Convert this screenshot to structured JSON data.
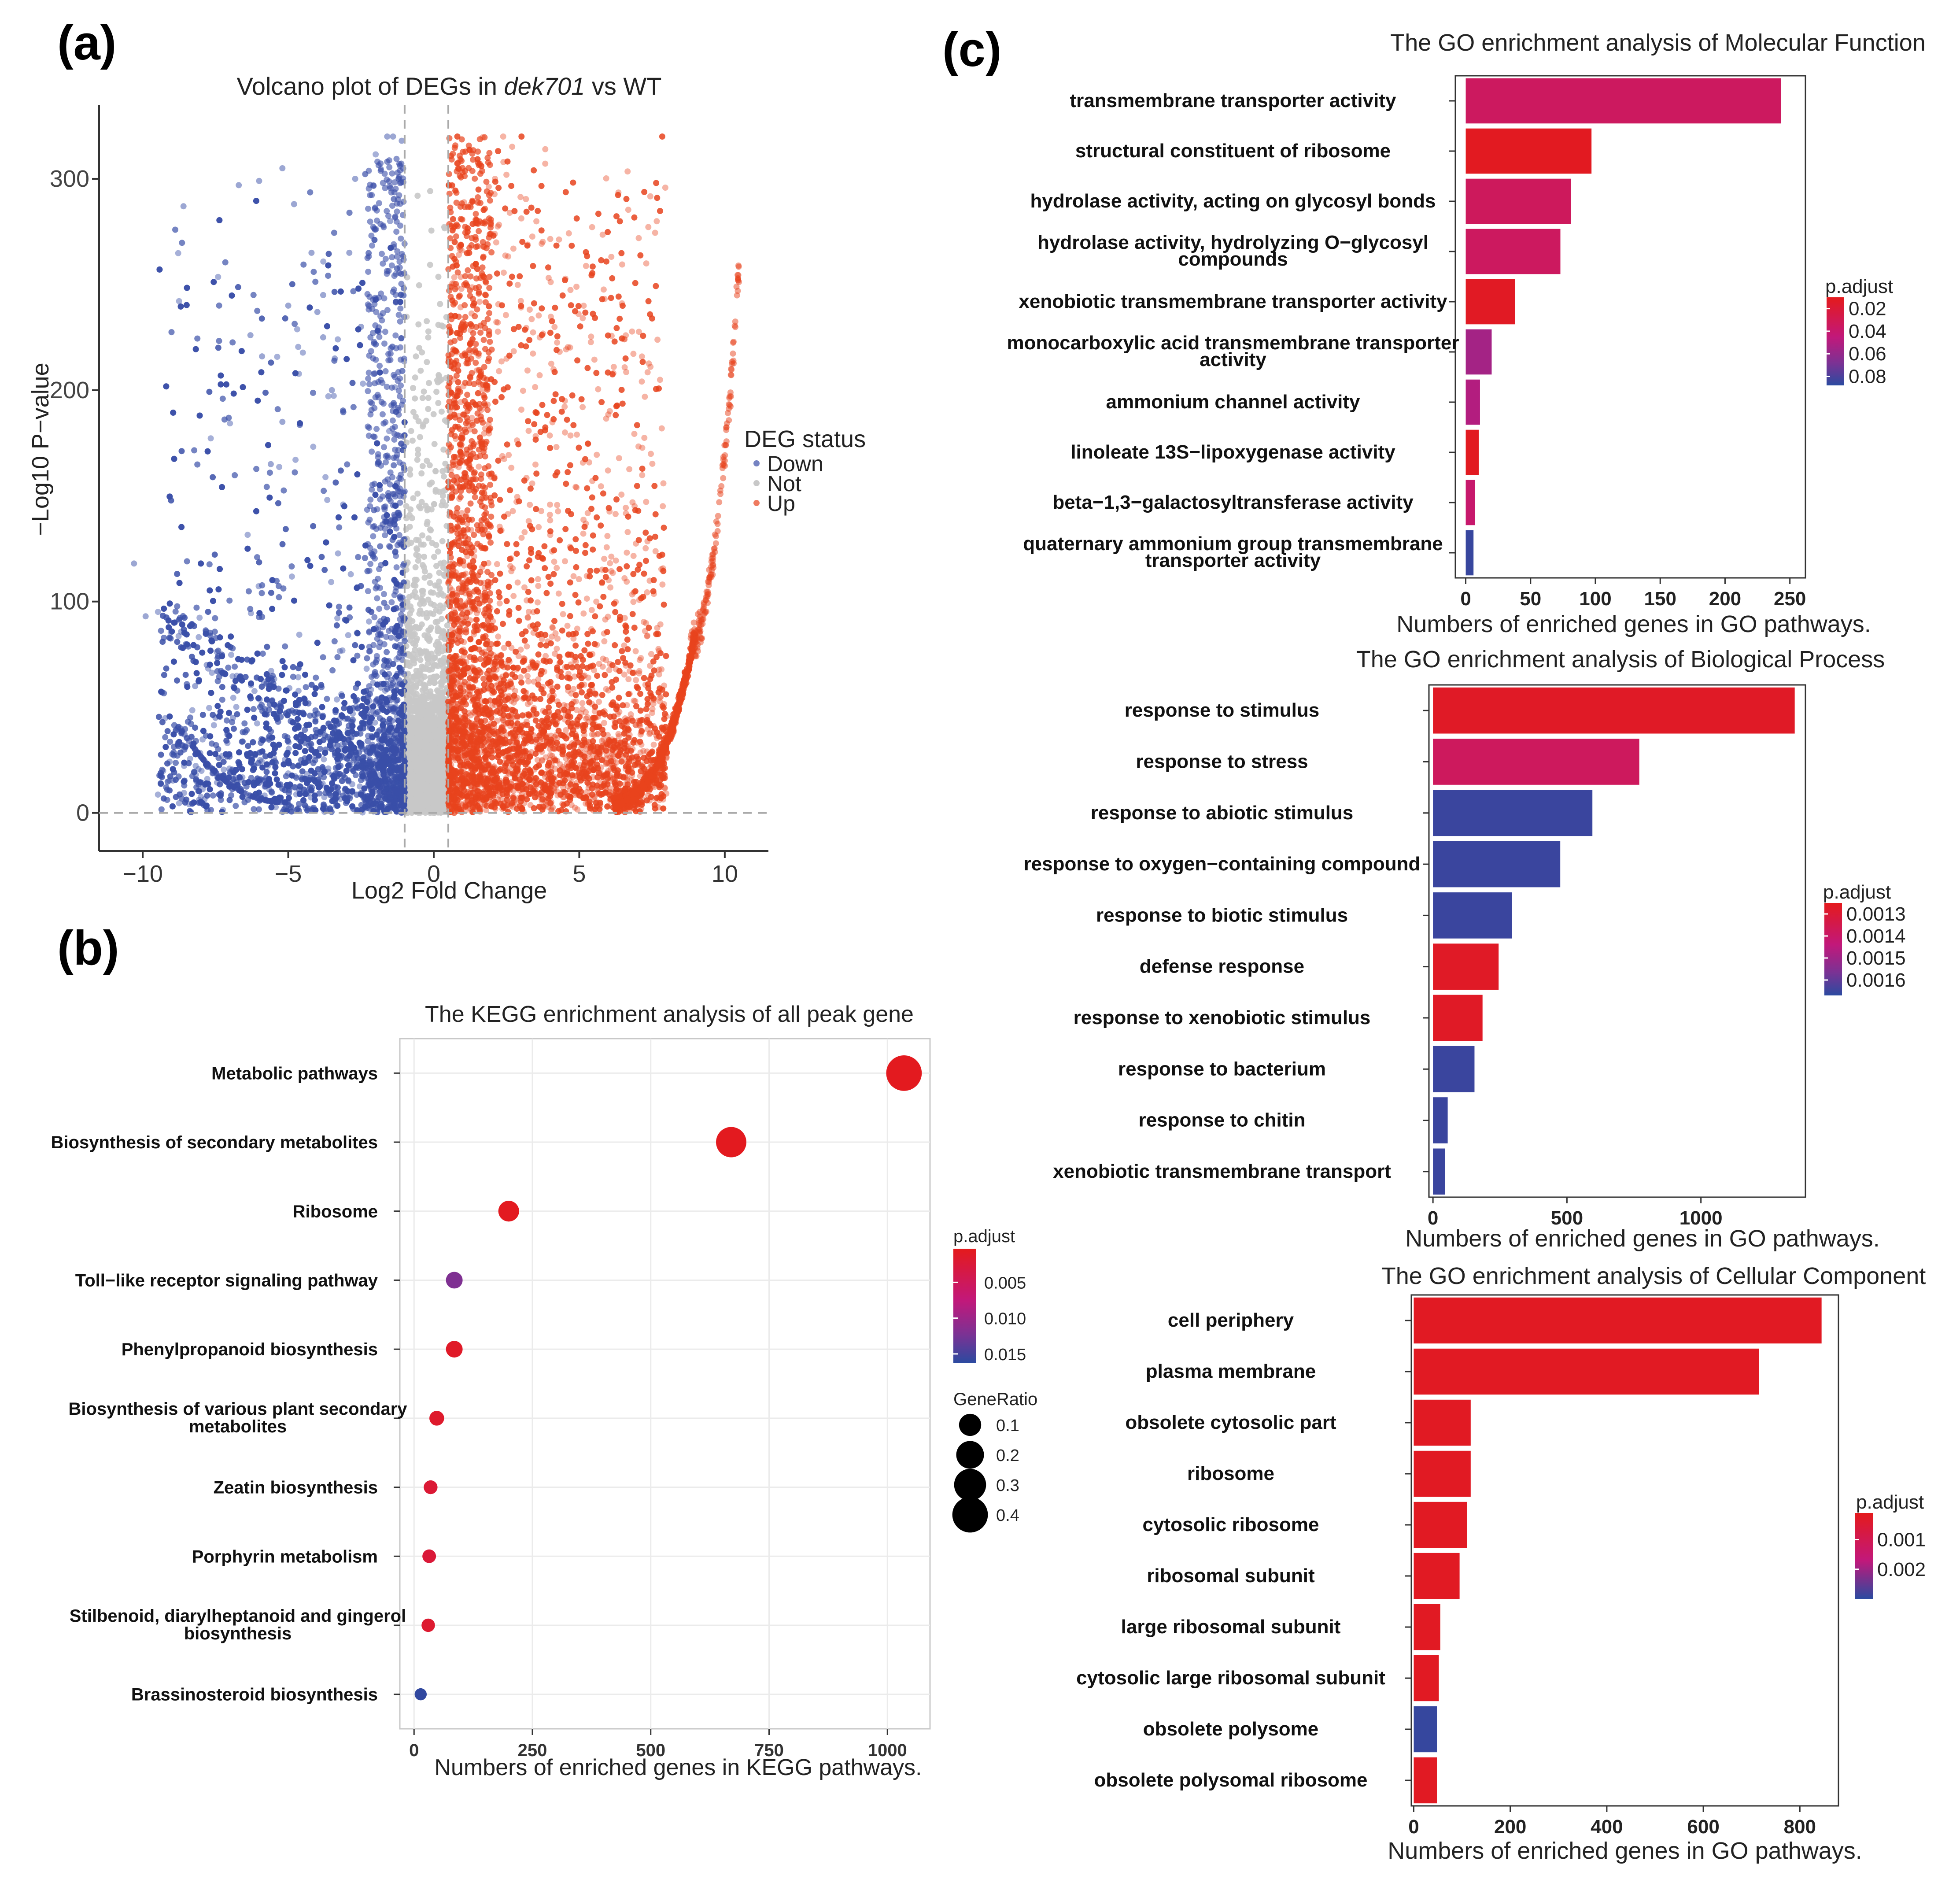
{
  "panel_labels": {
    "a": "(a)",
    "b": "(b)",
    "c": "(c)"
  },
  "colors": {
    "red": "#e41a1c",
    "magenta": "#c2187a",
    "purple": "#7b3294",
    "blue": "#2b4aa0",
    "down": "#3a4fa8",
    "not": "#c8c8c8",
    "up": "#e8431d",
    "grid": "#ebebeb"
  },
  "chart_data": [
    {
      "id": "volcano",
      "type": "scatter",
      "title_prefix": "Volcano plot of DEGs in ",
      "title_italic": "dek701",
      "title_suffix": " vs WT",
      "xlabel": "Log2 Fold Change",
      "ylabel": "−Log10 P−value",
      "xlim": [
        -11.5,
        11.5
      ],
      "ylim": [
        -18,
        335
      ],
      "xticks": [
        -10,
        -5,
        0,
        5,
        10
      ],
      "xtick_labels": [
        "−10",
        "−5",
        "0",
        "5",
        "10"
      ],
      "yticks": [
        0,
        100,
        200,
        300
      ],
      "ytick_labels": [
        "0",
        "100",
        "200",
        "300"
      ],
      "thresholds": {
        "x": [
          -1,
          0.5
        ],
        "y": 0
      },
      "legend": {
        "title": "DEG status",
        "entries": [
          "Down",
          "Not",
          "Up"
        ],
        "position": "right"
      },
      "series": [
        {
          "name": "Down",
          "note": "approximately 6000 genes with log2FC < -1",
          "points": [
            [
              -10.3,
              118
            ],
            [
              -9.9,
              93
            ],
            [
              -8.6,
              287
            ],
            [
              -8.8,
              40
            ],
            [
              -7.5,
              45
            ],
            [
              -6.7,
              297
            ],
            [
              -6.3,
              226
            ],
            [
              -6.0,
              299
            ],
            [
              -5.9,
              216
            ],
            [
              -5.6,
              165
            ],
            [
              -5.2,
              185
            ],
            [
              -5.2,
              305
            ],
            [
              -5.0,
              240
            ],
            [
              -4.8,
              288
            ],
            [
              -4.2,
              265
            ],
            [
              -4.0,
              237
            ],
            [
              -3.8,
              245
            ],
            [
              -3.8,
              225
            ],
            [
              -3.5,
              200
            ],
            [
              -3.4,
              215
            ],
            [
              -2.7,
              300
            ],
            [
              -2.5,
              230
            ],
            [
              -2.9,
              265
            ],
            [
              -1.6,
              320
            ],
            [
              -1.4,
              320
            ],
            [
              -1.1,
              318
            ],
            [
              -1.2,
              300
            ],
            [
              -1.3,
              255
            ],
            [
              -1.5,
              280
            ],
            [
              -7.8,
              70
            ],
            [
              -6.9,
              45
            ],
            [
              -8.2,
              60
            ]
          ]
        }
      ]
    },
    {
      "id": "kegg",
      "type": "scatter",
      "title": "The KEGG enrichment analysis of all peak gene",
      "xlabel": "Numbers of enriched genes in KEGG pathways.",
      "xlim": [
        -30,
        1090
      ],
      "xticks": [
        0,
        250,
        500,
        750,
        1000
      ],
      "xtick_labels": [
        "0",
        "250",
        "500",
        "750",
        "1000"
      ],
      "categories": [
        "Metabolic pathways",
        "Biosynthesis of secondary metabolites",
        "Ribosome",
        "Toll−like receptor signaling pathway",
        "Phenylpropanoid biosynthesis",
        "Biosynthesis of various plant secondary|metabolites",
        "Zeatin biosynthesis",
        "Porphyrin metabolism",
        "Stilbenoid, diarylheptanoid and gingerol|biosynthesis",
        "Brassinosteroid biosynthesis"
      ],
      "counts": [
        1035,
        670,
        200,
        85,
        85,
        48,
        35,
        32,
        30,
        14
      ],
      "padjust": [
        0.0005,
        0.0005,
        0.0006,
        0.012,
        0.0012,
        0.0015,
        0.0022,
        0.0025,
        0.0018,
        0.016
      ],
      "gene_ratio": [
        0.4,
        0.26,
        0.08,
        0.035,
        0.035,
        0.02,
        0.014,
        0.013,
        0.012,
        0.006
      ],
      "legend_color": {
        "title": "p.adjust",
        "ticks": [
          0.005,
          0.01,
          0.015
        ],
        "tick_labels": [
          "0.005",
          "0.010",
          "0.015"
        ],
        "range": [
          0.0003,
          0.0163
        ],
        "position": "right"
      },
      "legend_size": {
        "title": "GeneRatio",
        "entries": [
          0.1,
          0.2,
          0.3,
          0.4
        ],
        "labels": [
          "0.1",
          "0.2",
          "0.3",
          "0.4"
        ]
      }
    },
    {
      "id": "go_mf",
      "type": "bar",
      "title": "The GO enrichment analysis of Molecular Function",
      "xlabel": "Numbers of enriched genes in GO pathways.",
      "xlim": [
        -8,
        262
      ],
      "xticks": [
        0,
        50,
        100,
        150,
        200,
        250
      ],
      "xtick_labels": [
        "0",
        "50",
        "100",
        "150",
        "200",
        "250"
      ],
      "categories": [
        "transmembrane transporter activity",
        "structural constituent of ribosome",
        "hydrolase activity, acting on glycosyl bonds",
        "hydrolase activity, hydrolyzing O−glycosyl|compounds",
        "xenobiotic transmembrane transporter activity",
        "monocarboxylic acid transmembrane transporter|activity",
        "ammonium channel activity",
        "linoleate 13S−lipoxygenase activity",
        "beta−1,3−galactosyltransferase activity",
        "quaternary ammonium group transmembrane|transporter activity"
      ],
      "values": [
        243,
        97,
        81,
        73,
        38,
        20,
        11,
        10,
        7,
        6
      ],
      "padjust": [
        0.035,
        0.012,
        0.034,
        0.035,
        0.013,
        0.055,
        0.05,
        0.012,
        0.04,
        0.085
      ],
      "legend": {
        "title": "p.adjust",
        "ticks": [
          0.02,
          0.04,
          0.06,
          0.08
        ],
        "tick_labels": [
          "0.02",
          "0.04",
          "0.06",
          "0.08"
        ],
        "range": [
          0.01,
          0.088
        ]
      }
    },
    {
      "id": "go_bp",
      "type": "bar",
      "title": "The GO enrichment analysis of Biological Process",
      "xlabel": "Numbers of enriched genes in GO pathways.",
      "xlim": [
        -15,
        1390
      ],
      "xticks": [
        0,
        500,
        1000
      ],
      "xtick_labels": [
        "0",
        "500",
        "1000"
      ],
      "categories": [
        "response to stimulus",
        "response to stress",
        "response to abiotic stimulus",
        "response to oxygen−containing compound",
        "response to biotic stimulus",
        "defense response",
        "response to xenobiotic stimulus",
        "response to bacterium",
        "response to chitin",
        "xenobiotic transmembrane transport"
      ],
      "values": [
        1350,
        770,
        595,
        475,
        295,
        245,
        185,
        155,
        55,
        45
      ],
      "padjust": [
        0.00127,
        0.00138,
        0.00165,
        0.00165,
        0.00165,
        0.00127,
        0.00127,
        0.00165,
        0.00165,
        0.00165
      ],
      "legend": {
        "title": "p.adjust",
        "ticks": [
          0.0013,
          0.0014,
          0.0015,
          0.0016
        ],
        "tick_labels": [
          "0.0013",
          "0.0014",
          "0.0015",
          "0.0016"
        ],
        "range": [
          0.00125,
          0.00167
        ]
      }
    },
    {
      "id": "go_cc",
      "type": "bar",
      "title": "The GO enrichment analysis of Cellular Component",
      "xlabel": "Numbers of enriched genes in GO pathways.",
      "xlim": [
        -5,
        880
      ],
      "xticks": [
        0,
        200,
        400,
        600,
        800
      ],
      "xtick_labels": [
        "0",
        "200",
        "400",
        "600",
        "800"
      ],
      "categories": [
        "cell periphery",
        "plasma membrane",
        "obsolete cytosolic part",
        "ribosome",
        "cytosolic ribosome",
        "ribosomal subunit",
        "large ribosomal subunit",
        "cytosolic large ribosomal subunit",
        "obsolete polysome",
        "obsolete polysomal ribosome"
      ],
      "values": [
        845,
        715,
        118,
        118,
        110,
        95,
        55,
        52,
        48,
        48
      ],
      "padjust": [
        0.0002,
        0.0002,
        0.0002,
        0.0002,
        0.0002,
        0.0002,
        0.0002,
        0.0002,
        0.0029,
        0.0002
      ],
      "legend": {
        "title": "p.adjust",
        "ticks": [
          0.001,
          0.002
        ],
        "tick_labels": [
          "0.001",
          "0.002"
        ],
        "range": [
          0.0001,
          0.003
        ]
      }
    }
  ]
}
